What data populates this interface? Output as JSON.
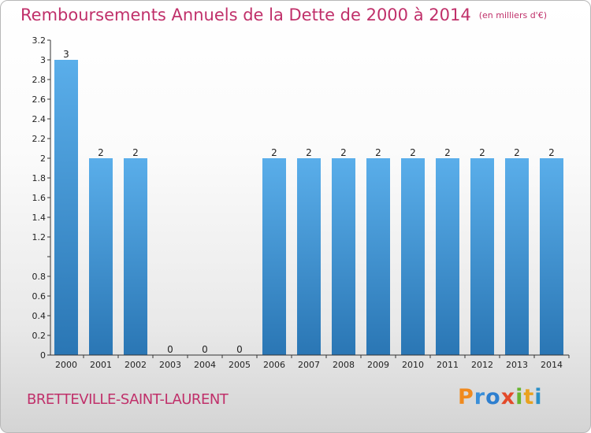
{
  "header": {
    "title": "Remboursements Annuels de la Dette de 2000 à 2014",
    "unit": "(en milliers d'€)"
  },
  "footer": {
    "commune": "BRETTEVILLE-SAINT-LAURENT",
    "logo": [
      "P",
      "r",
      "o",
      "x",
      "i",
      "t",
      "i"
    ]
  },
  "colors": {
    "title": "#c0306a",
    "bar_top": "#5aaeea",
    "bar_bottom": "#2a76b4",
    "axis": "#333333"
  },
  "chart_data": {
    "type": "bar",
    "title": "Remboursements Annuels de la Dette de 2000 à 2014",
    "xlabel": "",
    "ylabel": "",
    "categories": [
      "2000",
      "2001",
      "2002",
      "2003",
      "2004",
      "2005",
      "2006",
      "2007",
      "2008",
      "2009",
      "2010",
      "2011",
      "2012",
      "2013",
      "2014"
    ],
    "values": [
      3,
      2,
      2,
      0,
      0,
      0,
      2,
      2,
      2,
      2,
      2,
      2,
      2,
      2,
      2
    ],
    "data_labels": [
      "3",
      "2",
      "2",
      "0",
      "0",
      "0",
      "2",
      "2",
      "2",
      "2",
      "2",
      "2",
      "2",
      "2",
      "2"
    ],
    "ylim": [
      0,
      3.2
    ],
    "yticks": [
      0,
      0.2,
      0.4,
      0.6,
      0.8,
      1,
      1.2,
      1.4,
      1.6,
      1.8,
      2,
      2.2,
      2.4,
      2.6,
      2.8,
      3,
      3.2
    ],
    "ytick_labels": [
      "0",
      "0.2",
      "0.4",
      "0.6",
      "0.8",
      "",
      "1.2",
      "1.4",
      "1.6",
      "1.8",
      "2",
      "2.2",
      "2.4",
      "2.6",
      "2.8",
      "3",
      "3.2"
    ],
    "grid": false,
    "legend": "none"
  }
}
